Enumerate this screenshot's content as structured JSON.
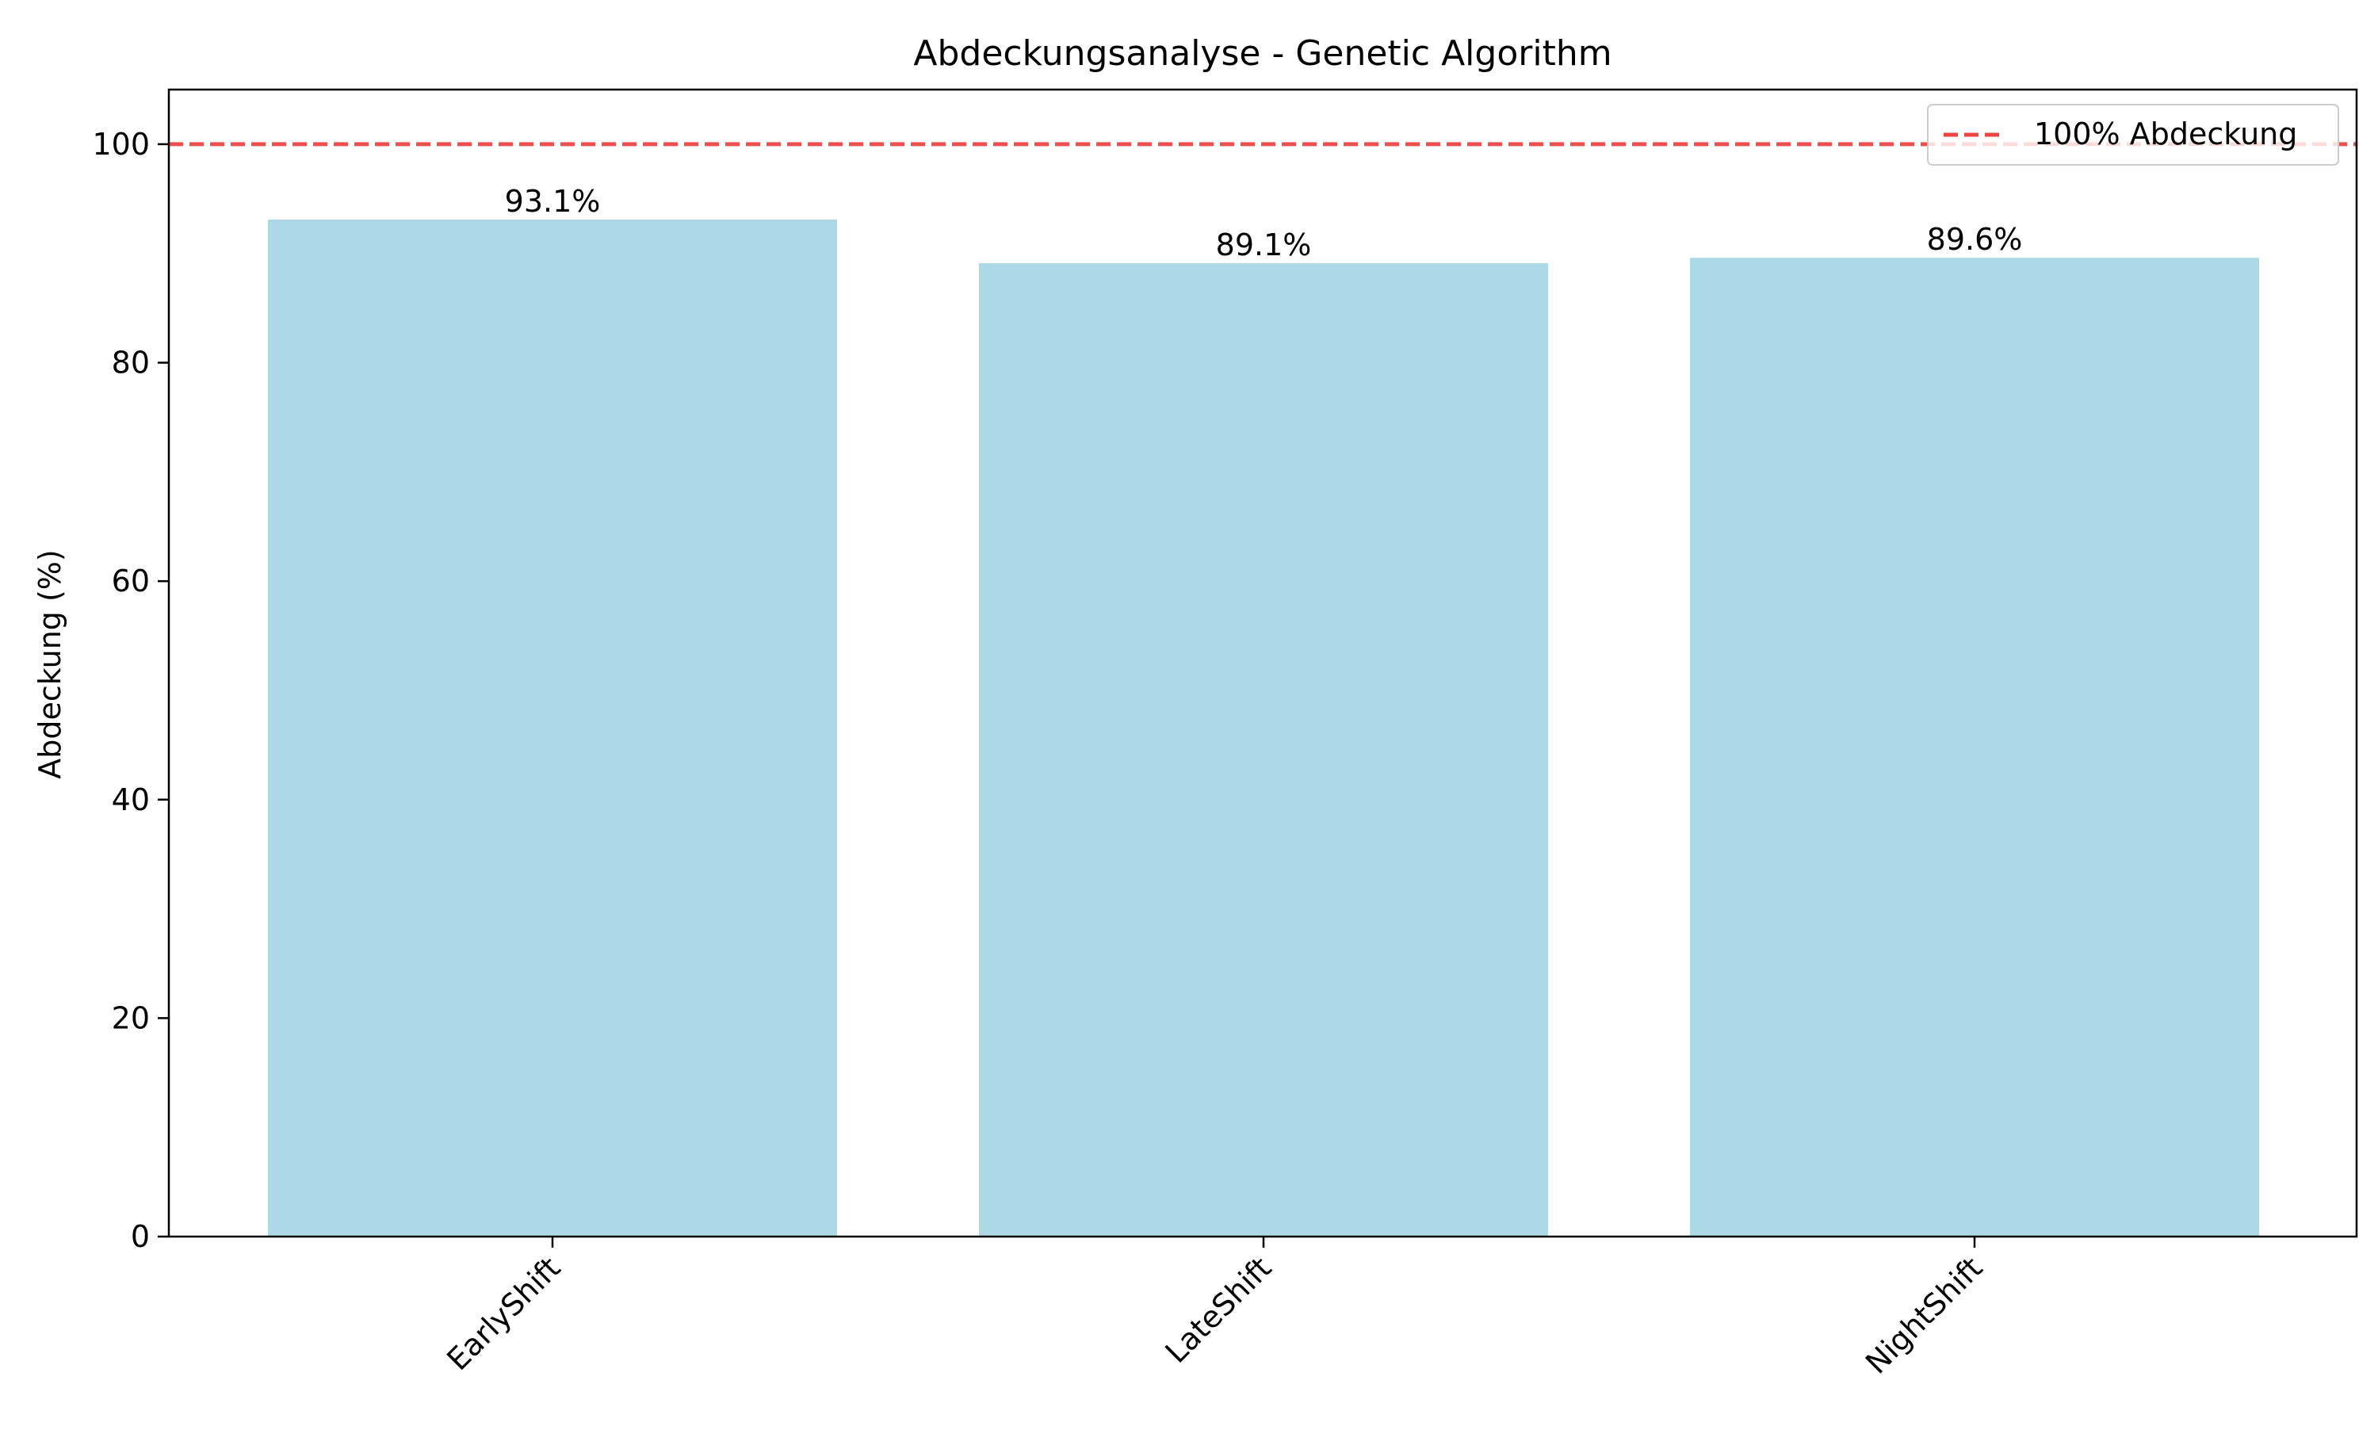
{
  "chart_data": {
    "type": "bar",
    "title": "Abdeckungsanalyse - Genetic Algorithm",
    "xlabel": "",
    "ylabel": "Abdeckung (%)",
    "categories": [
      "EarlyShift",
      "LateShift",
      "NightShift"
    ],
    "values": [
      93.1,
      89.1,
      89.6
    ],
    "value_labels": [
      "93.1%",
      "89.1%",
      "89.6%"
    ],
    "ylim": [
      0,
      105
    ],
    "yticks": [
      0,
      20,
      40,
      60,
      80,
      100
    ],
    "ytick_labels": [
      "0",
      "20",
      "40",
      "60",
      "80",
      "100"
    ],
    "bar_color": "#add8e6",
    "grid": false,
    "reference_line": {
      "y": 100,
      "label": "100% Abdeckung",
      "color": "#ee4444",
      "style": "dashed"
    },
    "legend": {
      "placement": "top-right",
      "entries": [
        "100% Abdeckung"
      ]
    }
  }
}
